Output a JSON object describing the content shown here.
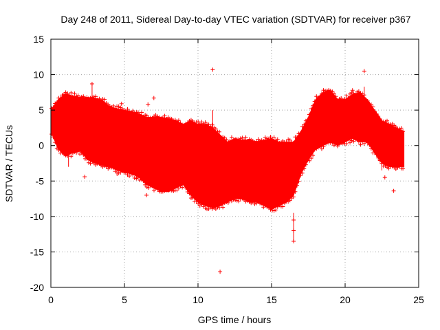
{
  "chart_data": {
    "type": "scatter",
    "title": "Day 248 of 2011, Sidereal Day-to-day VTEC variation (SDTVAR) for receiver p367",
    "xlabel": "GPS time / hours",
    "ylabel": "SDTVAR / TECUs",
    "xlim": [
      0,
      25
    ],
    "ylim": [
      -20,
      15
    ],
    "xticks": [
      0,
      5,
      10,
      15,
      20,
      25
    ],
    "yticks": [
      -20,
      -15,
      -10,
      -5,
      0,
      5,
      10,
      15
    ],
    "grid": true,
    "marker": "+",
    "color": "#ff0000",
    "series": [
      {
        "name": "SDTVAR",
        "envelope_upper": [
          [
            0.0,
            5.0
          ],
          [
            0.5,
            6.5
          ],
          [
            1.0,
            7.3
          ],
          [
            1.5,
            7.0
          ],
          [
            2.0,
            6.8
          ],
          [
            2.5,
            6.8
          ],
          [
            3.0,
            6.7
          ],
          [
            3.5,
            6.4
          ],
          [
            4.0,
            5.5
          ],
          [
            4.5,
            5.2
          ],
          [
            5.0,
            5.0
          ],
          [
            5.5,
            4.8
          ],
          [
            6.0,
            4.5
          ],
          [
            6.5,
            4.0
          ],
          [
            7.0,
            4.0
          ],
          [
            7.5,
            4.0
          ],
          [
            8.0,
            3.8
          ],
          [
            8.5,
            3.5
          ],
          [
            9.0,
            3.0
          ],
          [
            9.5,
            3.5
          ],
          [
            10.0,
            3.0
          ],
          [
            10.5,
            3.0
          ],
          [
            11.0,
            2.5
          ],
          [
            11.5,
            1.5
          ],
          [
            12.0,
            0.5
          ],
          [
            12.5,
            1.0
          ],
          [
            13.0,
            0.8
          ],
          [
            13.5,
            0.8
          ],
          [
            14.0,
            0.5
          ],
          [
            14.5,
            0.8
          ],
          [
            15.0,
            1.0
          ],
          [
            15.5,
            0.5
          ],
          [
            16.0,
            0.5
          ],
          [
            16.5,
            0.5
          ],
          [
            17.0,
            2.0
          ],
          [
            17.5,
            4.0
          ],
          [
            18.0,
            6.5
          ],
          [
            18.5,
            7.5
          ],
          [
            19.0,
            7.8
          ],
          [
            19.5,
            6.5
          ],
          [
            20.0,
            6.5
          ],
          [
            20.5,
            7.2
          ],
          [
            21.0,
            7.5
          ],
          [
            21.5,
            6.5
          ],
          [
            22.0,
            5.0
          ],
          [
            22.5,
            3.5
          ],
          [
            23.0,
            3.0
          ],
          [
            23.5,
            2.5
          ],
          [
            24.0,
            2.0
          ]
        ],
        "envelope_lower": [
          [
            0.0,
            2.0
          ],
          [
            0.5,
            -0.5
          ],
          [
            1.0,
            -1.5
          ],
          [
            1.5,
            -1.0
          ],
          [
            2.0,
            -0.8
          ],
          [
            2.5,
            -2.0
          ],
          [
            3.0,
            -2.5
          ],
          [
            3.5,
            -2.8
          ],
          [
            4.0,
            -3.0
          ],
          [
            4.5,
            -3.5
          ],
          [
            5.0,
            -3.8
          ],
          [
            5.5,
            -4.0
          ],
          [
            6.0,
            -4.5
          ],
          [
            6.5,
            -5.5
          ],
          [
            7.0,
            -6.0
          ],
          [
            7.5,
            -6.5
          ],
          [
            8.0,
            -6.5
          ],
          [
            8.5,
            -6.0
          ],
          [
            9.0,
            -5.5
          ],
          [
            9.5,
            -7.0
          ],
          [
            10.0,
            -8.0
          ],
          [
            10.5,
            -8.5
          ],
          [
            11.0,
            -8.8
          ],
          [
            11.5,
            -8.5
          ],
          [
            12.0,
            -8.0
          ],
          [
            12.5,
            -7.5
          ],
          [
            13.0,
            -7.5
          ],
          [
            13.5,
            -8.0
          ],
          [
            14.0,
            -8.0
          ],
          [
            14.5,
            -8.5
          ],
          [
            15.0,
            -9.0
          ],
          [
            15.5,
            -8.5
          ],
          [
            16.0,
            -8.0
          ],
          [
            16.5,
            -7.0
          ],
          [
            17.0,
            -4.0
          ],
          [
            17.5,
            -2.0
          ],
          [
            18.0,
            -0.5
          ],
          [
            18.5,
            0.0
          ],
          [
            19.0,
            0.5
          ],
          [
            19.5,
            0.0
          ],
          [
            20.0,
            0.5
          ],
          [
            20.5,
            1.0
          ],
          [
            21.0,
            0.5
          ],
          [
            21.5,
            0.5
          ],
          [
            22.0,
            -1.0
          ],
          [
            22.5,
            -2.5
          ],
          [
            23.0,
            -3.0
          ],
          [
            23.5,
            -3.0
          ],
          [
            24.0,
            -3.0
          ]
        ],
        "outliers": [
          [
            2.8,
            8.7
          ],
          [
            4.8,
            5.9
          ],
          [
            6.6,
            5.8
          ],
          [
            7.0,
            6.7
          ],
          [
            11.0,
            10.7
          ],
          [
            11.5,
            -17.8
          ],
          [
            21.3,
            10.5
          ],
          [
            23.3,
            -6.4
          ],
          [
            2.3,
            -4.4
          ],
          [
            6.5,
            -7.0
          ],
          [
            16.5,
            -10.5
          ],
          [
            16.5,
            -13.5
          ],
          [
            16.5,
            -12.0
          ],
          [
            22.7,
            -4.5
          ],
          [
            20.5,
            7.8
          ],
          [
            1.6,
            6.5
          ],
          [
            12.2,
            -4.3
          ]
        ]
      }
    ]
  }
}
